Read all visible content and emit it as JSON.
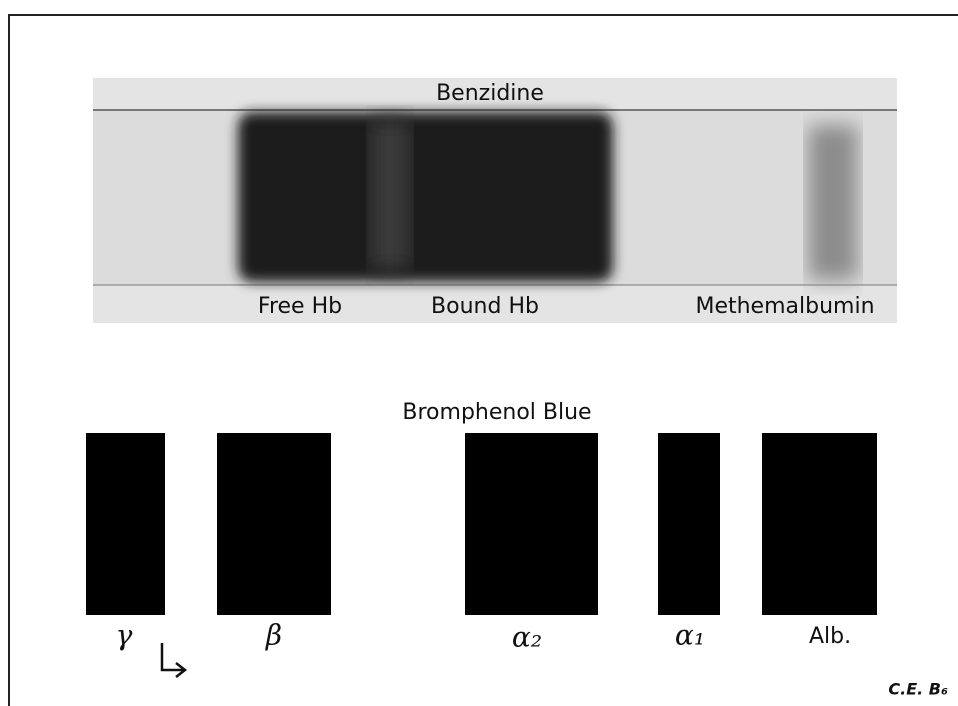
{
  "top_panel": {
    "title": "Benzidine",
    "labels": [
      "Free Hb",
      "Bound Hb",
      "Methemalbumin"
    ]
  },
  "bottom_panel": {
    "title": "Bromphenol Blue",
    "labels": [
      "γ",
      "β",
      "α₂",
      "α₁",
      "Alb."
    ]
  },
  "footer": {
    "code": "C.E. B₆"
  }
}
